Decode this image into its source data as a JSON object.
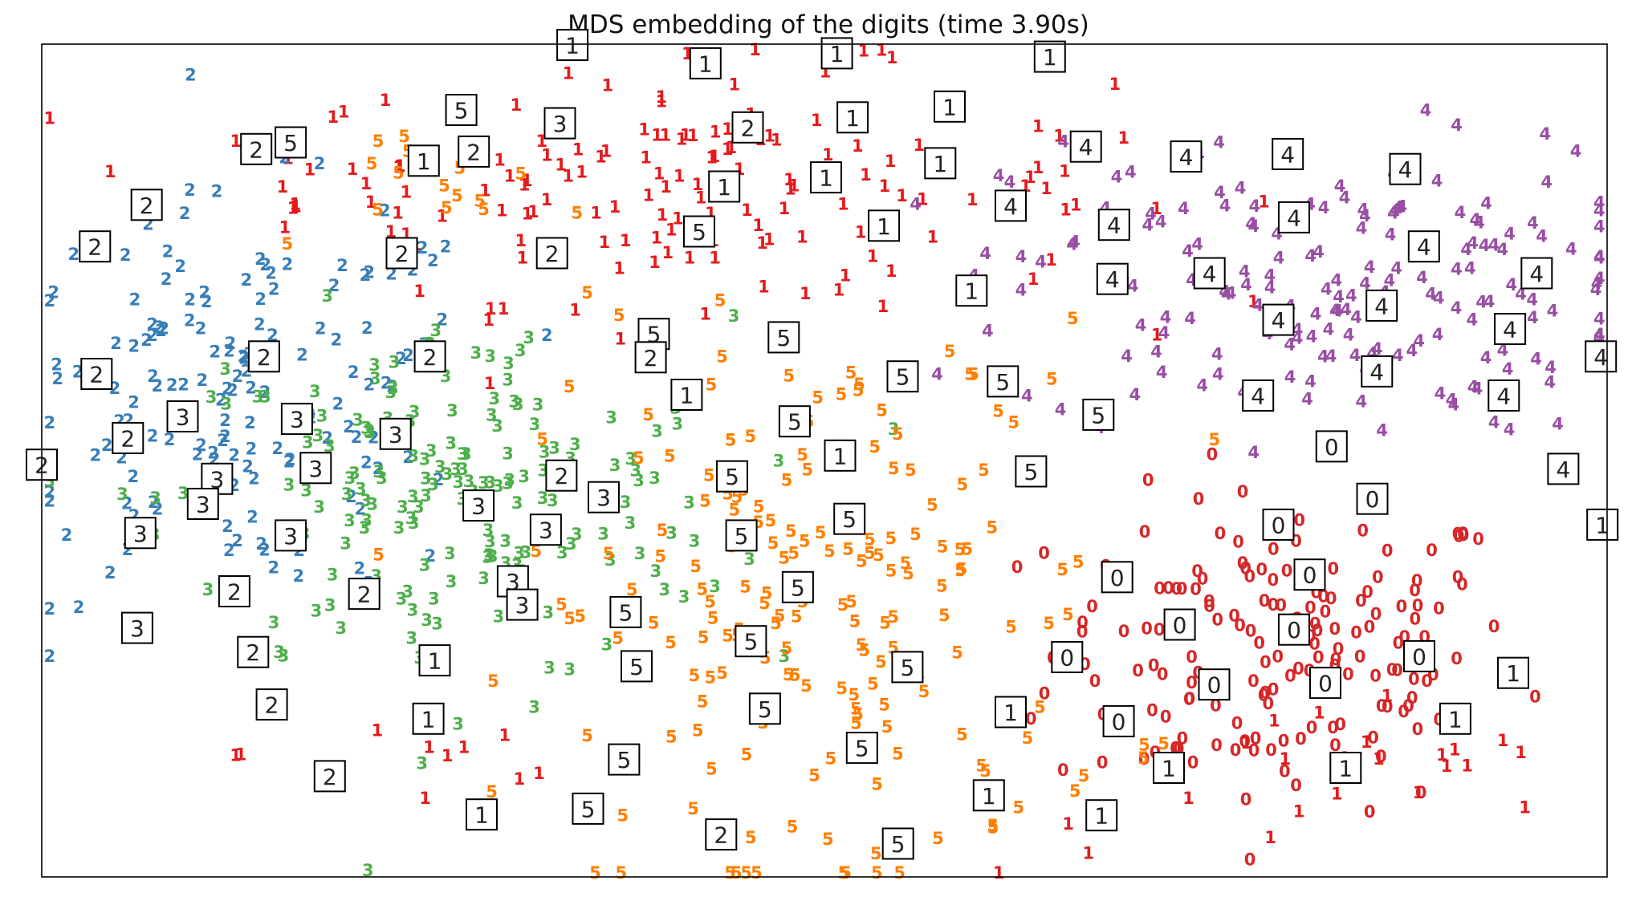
{
  "chart_data": {
    "type": "scatter",
    "title": "MDS embedding of the digits (time 3.90s)",
    "xlabel": "",
    "ylabel": "",
    "xlim": [
      0,
      1
    ],
    "ylim": [
      0,
      1
    ],
    "grid": false,
    "legend": "none",
    "axes_ticks": false,
    "colors": {
      "0": "#d62728",
      "1": "#e41a1c",
      "2": "#377eb8",
      "3": "#4daf4a",
      "4": "#984ea3",
      "5": "#ff7f00"
    },
    "clusters": [
      {
        "label": "0",
        "cx": 0.795,
        "cy": 0.27,
        "sx": 0.075,
        "sy": 0.095,
        "n": 170
      },
      {
        "label": "1",
        "cx": 0.42,
        "cy": 0.83,
        "sx": 0.13,
        "sy": 0.07,
        "n": 150
      },
      {
        "label": "1",
        "cx": 0.83,
        "cy": 0.1,
        "sx": 0.11,
        "sy": 0.06,
        "n": 22
      },
      {
        "label": "1",
        "cx": 0.18,
        "cy": 0.85,
        "sx": 0.04,
        "sy": 0.04,
        "n": 10
      },
      {
        "label": "1",
        "cx": 0.25,
        "cy": 0.15,
        "sx": 0.06,
        "sy": 0.05,
        "n": 10
      },
      {
        "label": "2",
        "cx": 0.13,
        "cy": 0.57,
        "sx": 0.08,
        "sy": 0.12,
        "n": 150
      },
      {
        "label": "3",
        "cx": 0.26,
        "cy": 0.45,
        "sx": 0.09,
        "sy": 0.11,
        "n": 180
      },
      {
        "label": "4",
        "cx": 0.82,
        "cy": 0.71,
        "sx": 0.1,
        "sy": 0.09,
        "n": 185
      },
      {
        "label": "5",
        "cx": 0.5,
        "cy": 0.32,
        "sx": 0.095,
        "sy": 0.17,
        "n": 185
      },
      {
        "label": "5",
        "cx": 0.27,
        "cy": 0.83,
        "sx": 0.04,
        "sy": 0.04,
        "n": 15
      }
    ],
    "thumbnails": [
      {
        "label": "1",
        "x": 0.339,
        "y": 0.999
      },
      {
        "label": "1",
        "x": 0.424,
        "y": 0.977
      },
      {
        "label": "1",
        "x": 0.508,
        "y": 0.989
      },
      {
        "label": "1",
        "x": 0.644,
        "y": 0.985
      },
      {
        "label": "5",
        "x": 0.268,
        "y": 0.921
      },
      {
        "label": "5",
        "x": 0.159,
        "y": 0.882
      },
      {
        "label": "1",
        "x": 0.244,
        "y": 0.86
      },
      {
        "label": "3",
        "x": 0.331,
        "y": 0.905
      },
      {
        "label": "2",
        "x": 0.451,
        "y": 0.9
      },
      {
        "label": "1",
        "x": 0.518,
        "y": 0.912
      },
      {
        "label": "1",
        "x": 0.58,
        "y": 0.925
      },
      {
        "label": "1",
        "x": 0.574,
        "y": 0.857
      },
      {
        "label": "1",
        "x": 0.436,
        "y": 0.829
      },
      {
        "label": "1",
        "x": 0.501,
        "y": 0.84
      },
      {
        "label": "4",
        "x": 0.667,
        "y": 0.877
      },
      {
        "label": "4",
        "x": 0.731,
        "y": 0.865
      },
      {
        "label": "4",
        "x": 0.796,
        "y": 0.868
      },
      {
        "label": "4",
        "x": 0.871,
        "y": 0.85
      },
      {
        "label": "4",
        "x": 0.619,
        "y": 0.806
      },
      {
        "label": "4",
        "x": 0.685,
        "y": 0.783
      },
      {
        "label": "4",
        "x": 0.8,
        "y": 0.792
      },
      {
        "label": "4",
        "x": 0.883,
        "y": 0.757
      },
      {
        "label": "4",
        "x": 0.955,
        "y": 0.725
      },
      {
        "label": "4",
        "x": 0.746,
        "y": 0.725
      },
      {
        "label": "4",
        "x": 0.684,
        "y": 0.718
      },
      {
        "label": "4",
        "x": 0.856,
        "y": 0.686
      },
      {
        "label": "4",
        "x": 0.79,
        "y": 0.669
      },
      {
        "label": "4",
        "x": 0.938,
        "y": 0.658
      },
      {
        "label": "4",
        "x": 0.996,
        "y": 0.625
      },
      {
        "label": "4",
        "x": 0.853,
        "y": 0.607
      },
      {
        "label": "4",
        "x": 0.777,
        "y": 0.578
      },
      {
        "label": "4",
        "x": 0.934,
        "y": 0.578
      },
      {
        "label": "4",
        "x": 0.972,
        "y": 0.49
      },
      {
        "label": "1",
        "x": 0.997,
        "y": 0.423
      },
      {
        "label": "0",
        "x": 0.824,
        "y": 0.517
      },
      {
        "label": "0",
        "x": 0.85,
        "y": 0.454
      },
      {
        "label": "0",
        "x": 0.79,
        "y": 0.423
      },
      {
        "label": "0",
        "x": 0.81,
        "y": 0.363
      },
      {
        "label": "0",
        "x": 0.687,
        "y": 0.36
      },
      {
        "label": "0",
        "x": 0.727,
        "y": 0.303
      },
      {
        "label": "0",
        "x": 0.8,
        "y": 0.297
      },
      {
        "label": "0",
        "x": 0.655,
        "y": 0.264
      },
      {
        "label": "0",
        "x": 0.749,
        "y": 0.231
      },
      {
        "label": "0",
        "x": 0.82,
        "y": 0.233
      },
      {
        "label": "0",
        "x": 0.88,
        "y": 0.265
      },
      {
        "label": "0",
        "x": 0.688,
        "y": 0.187
      },
      {
        "label": "1",
        "x": 0.94,
        "y": 0.245
      },
      {
        "label": "1",
        "x": 0.903,
        "y": 0.19
      },
      {
        "label": "1",
        "x": 0.833,
        "y": 0.131
      },
      {
        "label": "1",
        "x": 0.72,
        "y": 0.131
      },
      {
        "label": "1",
        "x": 0.677,
        "y": 0.074
      },
      {
        "label": "1",
        "x": 0.605,
        "y": 0.098
      },
      {
        "label": "1",
        "x": 0.619,
        "y": 0.198
      },
      {
        "label": "1",
        "x": 0.538,
        "y": 0.782
      },
      {
        "label": "1",
        "x": 0.594,
        "y": 0.704
      },
      {
        "label": "5",
        "x": 0.42,
        "y": 0.775
      },
      {
        "label": "5",
        "x": 0.391,
        "y": 0.652
      },
      {
        "label": "5",
        "x": 0.474,
        "y": 0.648
      },
      {
        "label": "5",
        "x": 0.55,
        "y": 0.601
      },
      {
        "label": "5",
        "x": 0.614,
        "y": 0.595
      },
      {
        "label": "5",
        "x": 0.675,
        "y": 0.555
      },
      {
        "label": "5",
        "x": 0.632,
        "y": 0.487
      },
      {
        "label": "5",
        "x": 0.481,
        "y": 0.547
      },
      {
        "label": "5",
        "x": 0.441,
        "y": 0.481
      },
      {
        "label": "5",
        "x": 0.516,
        "y": 0.43
      },
      {
        "label": "5",
        "x": 0.447,
        "y": 0.41
      },
      {
        "label": "5",
        "x": 0.483,
        "y": 0.348
      },
      {
        "label": "5",
        "x": 0.373,
        "y": 0.318
      },
      {
        "label": "5",
        "x": 0.38,
        "y": 0.253
      },
      {
        "label": "5",
        "x": 0.453,
        "y": 0.283
      },
      {
        "label": "5",
        "x": 0.553,
        "y": 0.252
      },
      {
        "label": "5",
        "x": 0.462,
        "y": 0.202
      },
      {
        "label": "5",
        "x": 0.524,
        "y": 0.155
      },
      {
        "label": "5",
        "x": 0.372,
        "y": 0.141
      },
      {
        "label": "5",
        "x": 0.349,
        "y": 0.082
      },
      {
        "label": "5",
        "x": 0.547,
        "y": 0.04
      },
      {
        "label": "2",
        "x": 0.434,
        "y": 0.051
      },
      {
        "label": "1",
        "x": 0.281,
        "y": 0.075
      },
      {
        "label": "1",
        "x": 0.247,
        "y": 0.19
      },
      {
        "label": "1",
        "x": 0.251,
        "y": 0.26
      },
      {
        "label": "1",
        "x": 0.51,
        "y": 0.506
      },
      {
        "label": "1",
        "x": 0.412,
        "y": 0.579
      },
      {
        "label": "2",
        "x": 0.332,
        "y": 0.482
      },
      {
        "label": "2",
        "x": 0.389,
        "y": 0.624
      },
      {
        "label": "2",
        "x": 0.326,
        "y": 0.749
      },
      {
        "label": "2",
        "x": 0.23,
        "y": 0.749
      },
      {
        "label": "2",
        "x": 0.276,
        "y": 0.871
      },
      {
        "label": "2",
        "x": 0.137,
        "y": 0.874
      },
      {
        "label": "2",
        "x": 0.067,
        "y": 0.807
      },
      {
        "label": "2",
        "x": 0.034,
        "y": 0.757
      },
      {
        "label": "2",
        "x": 0.142,
        "y": 0.625
      },
      {
        "label": "2",
        "x": 0.035,
        "y": 0.604
      },
      {
        "label": "2",
        "x": 0.248,
        "y": 0.625
      },
      {
        "label": "2",
        "x": 0.206,
        "y": 0.34
      },
      {
        "label": "2",
        "x": 0.123,
        "y": 0.343
      },
      {
        "label": "2",
        "x": 0.135,
        "y": 0.27
      },
      {
        "label": "2",
        "x": 0.147,
        "y": 0.207
      },
      {
        "label": "2",
        "x": 0.055,
        "y": 0.527
      },
      {
        "label": "2",
        "x": 0.0,
        "y": 0.495
      },
      {
        "label": "2",
        "x": 0.184,
        "y": 0.121
      },
      {
        "label": "3",
        "x": 0.163,
        "y": 0.55
      },
      {
        "label": "3",
        "x": 0.226,
        "y": 0.532
      },
      {
        "label": "3",
        "x": 0.09,
        "y": 0.553
      },
      {
        "label": "3",
        "x": 0.322,
        "y": 0.417
      },
      {
        "label": "3",
        "x": 0.359,
        "y": 0.456
      },
      {
        "label": "3",
        "x": 0.279,
        "y": 0.446
      },
      {
        "label": "3",
        "x": 0.112,
        "y": 0.478
      },
      {
        "label": "3",
        "x": 0.063,
        "y": 0.413
      },
      {
        "label": "3",
        "x": 0.159,
        "y": 0.41
      },
      {
        "label": "3",
        "x": 0.301,
        "y": 0.355
      },
      {
        "label": "3",
        "x": 0.061,
        "y": 0.299
      },
      {
        "label": "3",
        "x": 0.307,
        "y": 0.327
      },
      {
        "label": "3",
        "x": 0.175,
        "y": 0.491
      },
      {
        "label": "3",
        "x": 0.103,
        "y": 0.448
      }
    ]
  }
}
